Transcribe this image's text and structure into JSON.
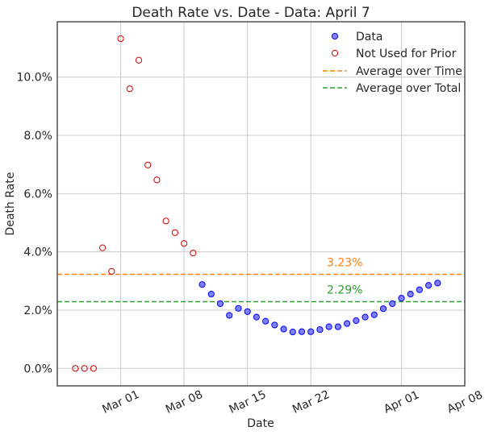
{
  "chart_data": {
    "type": "scatter",
    "title": "Death Rate vs. Date - Data: April 7",
    "xlabel": "Date",
    "ylabel": "Death Rate",
    "x_tick_labels": [
      {
        "date": "2020-03-01",
        "label": "Mar 01"
      },
      {
        "date": "2020-03-08",
        "label": "Mar 08"
      },
      {
        "date": "2020-03-15",
        "label": "Mar 15"
      },
      {
        "date": "2020-03-22",
        "label": "Mar 22"
      },
      {
        "date": "2020-04-01",
        "label": "Apr 01"
      },
      {
        "date": "2020-04-08",
        "label": "Apr 08"
      }
    ],
    "y_tick_labels": [
      {
        "value": 0,
        "label": "0.0%"
      },
      {
        "value": 2,
        "label": "2.0%"
      },
      {
        "value": 4,
        "label": "4.0%"
      },
      {
        "value": 6,
        "label": "6.0%"
      },
      {
        "value": 8,
        "label": "8.0%"
      },
      {
        "value": 10,
        "label": "10.0%"
      }
    ],
    "xlim": [
      "2020-02-23",
      "2020-04-08"
    ],
    "ylim": [
      -0.6,
      11.9
    ],
    "grid": true,
    "legend_position": "top-right",
    "series": [
      {
        "name": "Data",
        "marker": "circle",
        "color": "#0000ff",
        "fill": "#8080ff",
        "points": [
          {
            "x": "2020-03-10",
            "y": 2.88
          },
          {
            "x": "2020-03-11",
            "y": 2.55
          },
          {
            "x": "2020-03-12",
            "y": 2.22
          },
          {
            "x": "2020-03-13",
            "y": 1.82
          },
          {
            "x": "2020-03-14",
            "y": 2.06
          },
          {
            "x": "2020-03-15",
            "y": 1.95
          },
          {
            "x": "2020-03-16",
            "y": 1.76
          },
          {
            "x": "2020-03-17",
            "y": 1.62
          },
          {
            "x": "2020-03-18",
            "y": 1.49
          },
          {
            "x": "2020-03-19",
            "y": 1.35
          },
          {
            "x": "2020-03-20",
            "y": 1.25
          },
          {
            "x": "2020-03-21",
            "y": 1.26
          },
          {
            "x": "2020-03-22",
            "y": 1.26
          },
          {
            "x": "2020-03-23",
            "y": 1.33
          },
          {
            "x": "2020-03-24",
            "y": 1.43
          },
          {
            "x": "2020-03-25",
            "y": 1.43
          },
          {
            "x": "2020-03-26",
            "y": 1.54
          },
          {
            "x": "2020-03-27",
            "y": 1.64
          },
          {
            "x": "2020-03-28",
            "y": 1.76
          },
          {
            "x": "2020-03-29",
            "y": 1.84
          },
          {
            "x": "2020-03-30",
            "y": 2.05
          },
          {
            "x": "2020-03-31",
            "y": 2.22
          },
          {
            "x": "2020-04-01",
            "y": 2.41
          },
          {
            "x": "2020-04-02",
            "y": 2.55
          },
          {
            "x": "2020-04-03",
            "y": 2.7
          },
          {
            "x": "2020-04-04",
            "y": 2.85
          },
          {
            "x": "2020-04-05",
            "y": 2.93
          }
        ]
      },
      {
        "name": "Not Used for Prior",
        "marker": "circle",
        "color": "#cc0000",
        "fill": "none",
        "points": [
          {
            "x": "2020-02-25",
            "y": 0.0
          },
          {
            "x": "2020-02-26",
            "y": 0.0
          },
          {
            "x": "2020-02-27",
            "y": 0.0
          },
          {
            "x": "2020-02-28",
            "y": 4.14
          },
          {
            "x": "2020-02-29",
            "y": 3.33
          },
          {
            "x": "2020-03-01",
            "y": 11.32
          },
          {
            "x": "2020-03-02",
            "y": 9.6
          },
          {
            "x": "2020-03-03",
            "y": 10.58
          },
          {
            "x": "2020-03-04",
            "y": 6.98
          },
          {
            "x": "2020-03-05",
            "y": 6.47
          },
          {
            "x": "2020-03-06",
            "y": 5.06
          },
          {
            "x": "2020-03-07",
            "y": 4.66
          },
          {
            "x": "2020-03-08",
            "y": 4.29
          },
          {
            "x": "2020-03-09",
            "y": 3.96
          }
        ]
      }
    ],
    "reference_lines": [
      {
        "name": "Average over Time",
        "value": 3.23,
        "label": "3.23%",
        "color": "#ff7f0e",
        "style": "dashed"
      },
      {
        "name": "Average over Total",
        "value": 2.29,
        "label": "2.29%",
        "color": "#2ca02c",
        "style": "dashed"
      }
    ]
  }
}
